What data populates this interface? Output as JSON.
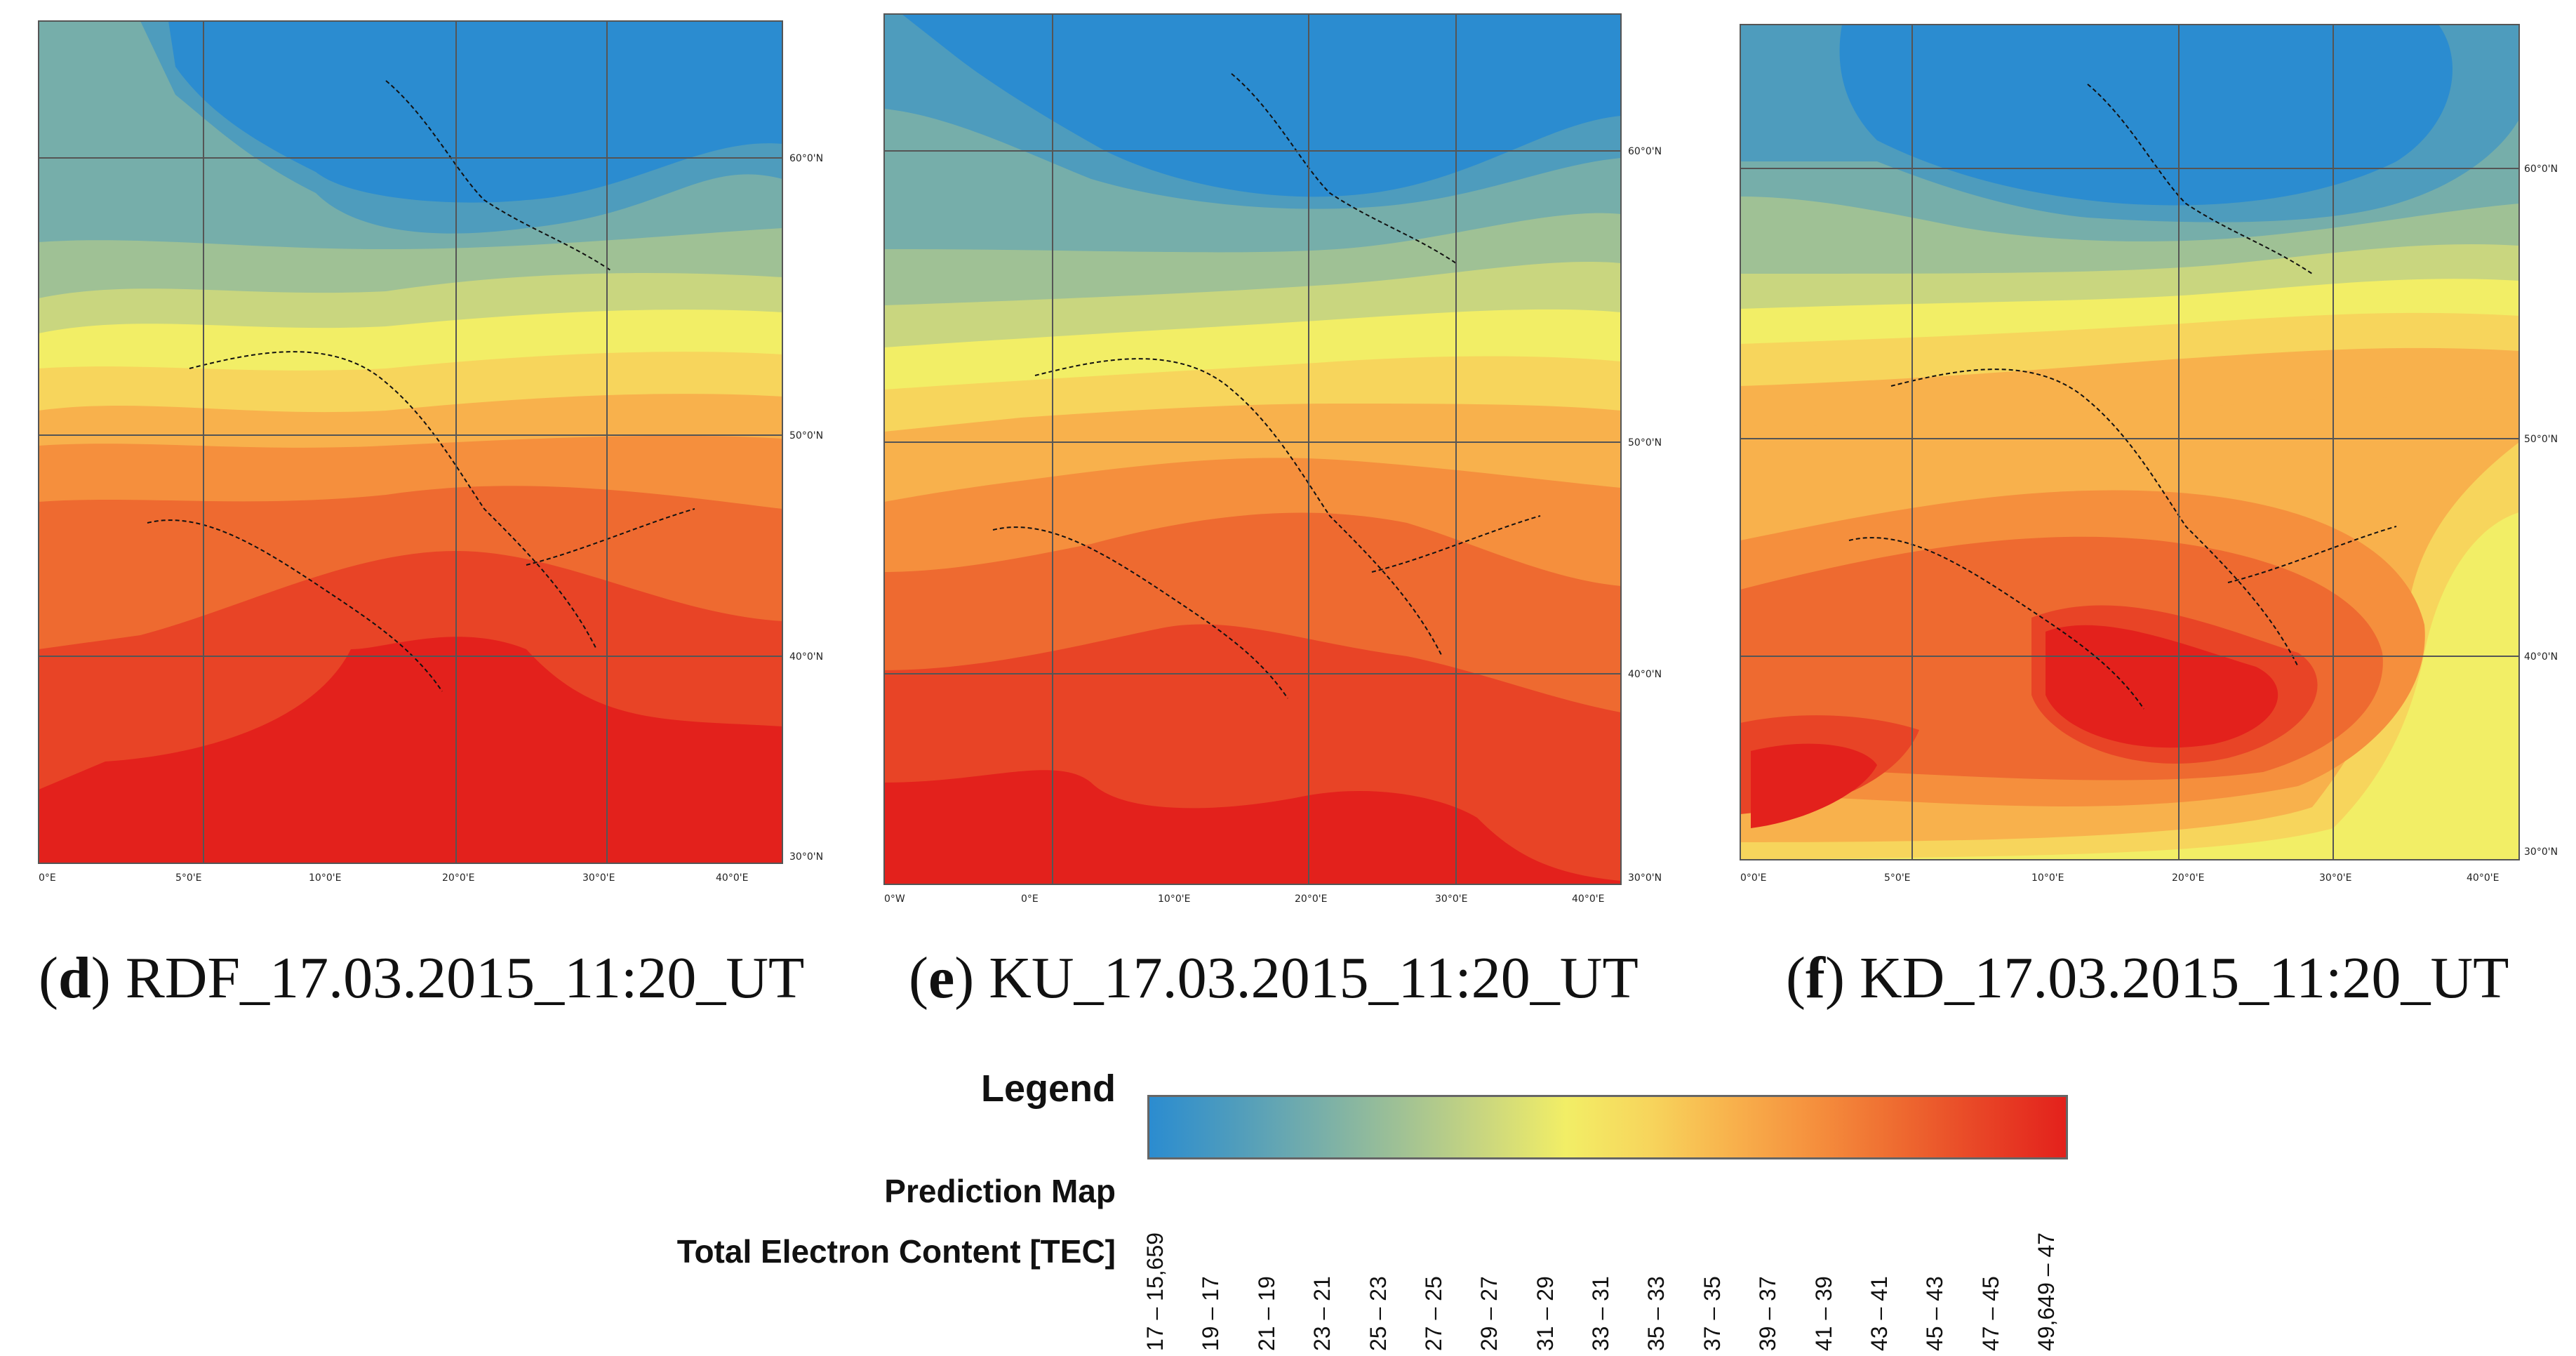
{
  "panels": [
    {
      "letter": "d",
      "caption_text": " RDF_17.03.2015_11:20_UT",
      "x_ticks": [
        "0°E",
        "5°0'E",
        "10°0'E",
        "20°0'E",
        "30°0'E",
        "40°0'E"
      ],
      "y_ticks": [
        "60°0'N",
        "50°0'N",
        "40°0'N",
        "30°0'N"
      ]
    },
    {
      "letter": "e",
      "caption_text": " KU_17.03.2015_11:20_UT",
      "x_ticks": [
        "0°W",
        "0°E",
        "10°0'E",
        "20°0'E",
        "30°0'E",
        "40°0'E"
      ],
      "y_ticks": [
        "60°0'N",
        "50°0'N",
        "40°0'N",
        "30°0'N"
      ]
    },
    {
      "letter": "f",
      "caption_text": " KD_17.03.2015_11:20_UT",
      "x_ticks": [
        "0°0'E",
        "5°0'E",
        "10°0'E",
        "20°0'E",
        "30°0'E",
        "40°0'E"
      ],
      "y_ticks": [
        "60°0'N",
        "50°0'N",
        "40°0'N",
        "30°0'N"
      ]
    }
  ],
  "legend": {
    "heading": "Legend",
    "subtitle": "Prediction Map",
    "variable": "Total Electron Content [TEC]",
    "colors": [
      "#2b8cd0",
      "#4e9cbd",
      "#76aeaa",
      "#9fc195",
      "#c9d67f",
      "#f2ee66",
      "#f7d55c",
      "#f8b14c",
      "#f58f3d",
      "#ee6a30",
      "#e84426",
      "#e3211c"
    ],
    "classes": [
      "17 – 15,659",
      "19 – 17",
      "21 – 19",
      "23 – 21",
      "25 – 23",
      "27 – 25",
      "29 – 27",
      "31 – 29",
      "33 – 31",
      "35 – 33",
      "37 – 35",
      "39 – 37",
      "41 – 39",
      "43 – 41",
      "45 – 43",
      "47 – 45",
      "49,649 – 47"
    ]
  }
}
